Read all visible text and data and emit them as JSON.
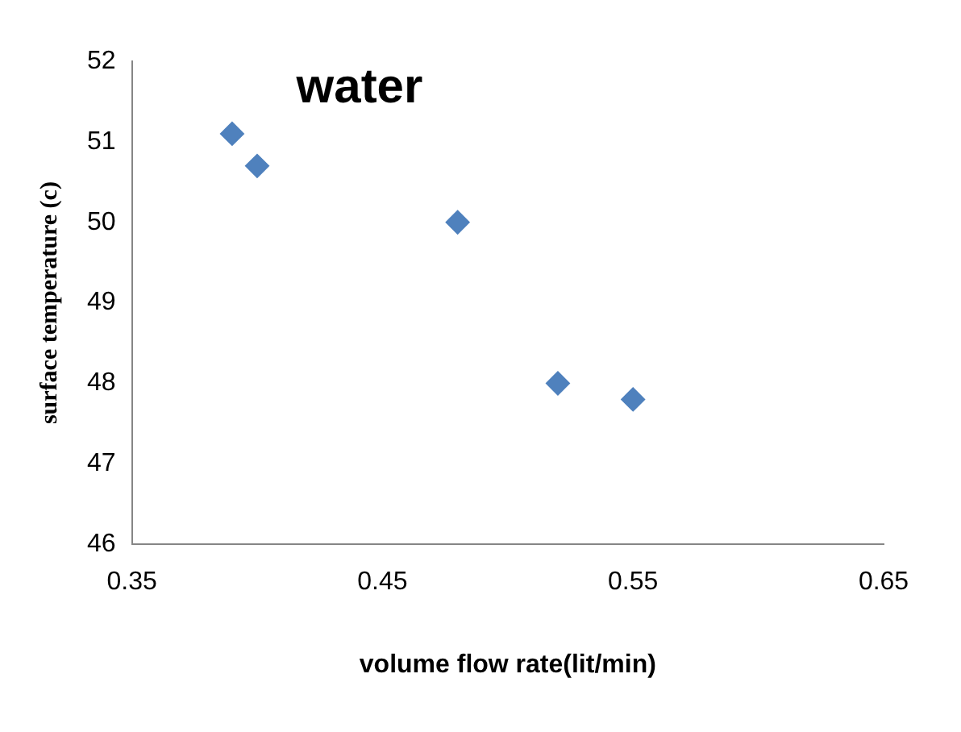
{
  "chart_data": {
    "type": "scatter",
    "title": "water",
    "xlabel": "volume flow rate(lit/min)",
    "ylabel": "surface temperature (c)",
    "x": [
      0.39,
      0.4,
      0.48,
      0.52,
      0.55
    ],
    "series": [
      {
        "color": "#4f81bd",
        "values": [
          51.1,
          50.7,
          50.0,
          48.0,
          47.8
        ]
      }
    ],
    "xlim": [
      0.35,
      0.65
    ],
    "xticks": [
      0.35,
      0.45,
      0.55,
      0.65
    ],
    "ylim": [
      46,
      52
    ],
    "yticks": [
      46,
      47,
      48,
      49,
      50,
      51,
      52
    ],
    "grid": false,
    "legend": false,
    "marker": "diamond"
  }
}
